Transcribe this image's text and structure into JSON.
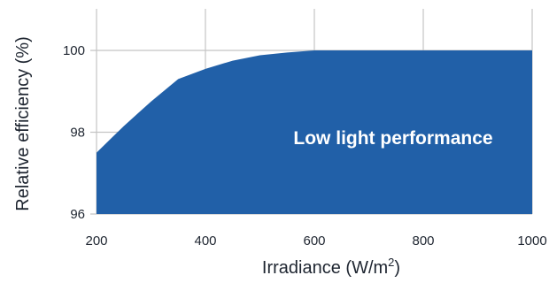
{
  "chart_data": {
    "type": "area",
    "x": [
      200,
      250,
      300,
      350,
      400,
      450,
      500,
      550,
      600,
      650,
      700,
      800,
      900,
      1000
    ],
    "y": [
      97.5,
      98.15,
      98.75,
      99.3,
      99.55,
      99.75,
      99.88,
      99.95,
      100,
      100,
      100,
      100,
      100,
      100
    ],
    "xlim": [
      200,
      1000
    ],
    "ylim": [
      96,
      100
    ],
    "x_ticks": [
      200,
      400,
      600,
      800,
      1000
    ],
    "y_ticks": [
      96,
      98,
      100
    ],
    "x_tick_labels": [
      "200",
      "400",
      "600",
      "800",
      "1000"
    ],
    "y_tick_labels": [
      "96",
      "98",
      "100"
    ],
    "xlabel_main": "Irradiance (W/m",
    "xlabel_sup": "2",
    "xlabel_close": ")",
    "ylabel": "Relative efficiency (%)",
    "annotation": "Low light performance",
    "grid": true,
    "fill_color": "#2160a8",
    "grid_color": "#c4c4c4"
  }
}
